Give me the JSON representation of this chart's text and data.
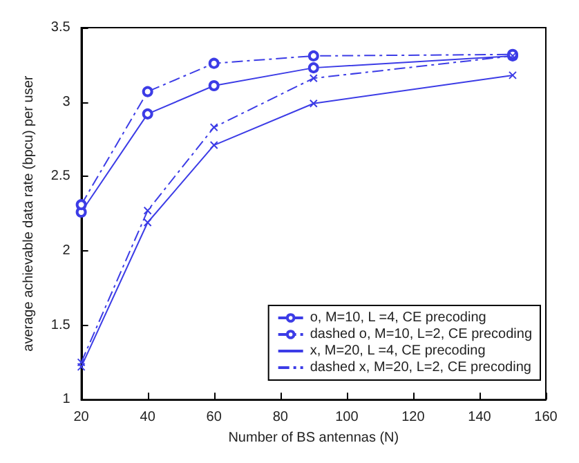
{
  "chart_data": {
    "type": "line",
    "xlabel": "Number of BS antennas (N)",
    "ylabel": "average achievable data rate (bpcu) per user",
    "x": [
      20,
      40,
      60,
      90,
      150
    ],
    "series": [
      {
        "name": "o, M=10, L =4, CE precoding",
        "color": "#3c3ce6",
        "marker": "circle",
        "line_style": "solid",
        "values": [
          2.26,
          2.92,
          3.11,
          3.23,
          3.31
        ]
      },
      {
        "name": "dashed o, M=10, L=2, CE precoding",
        "color": "#3c3ce6",
        "marker": "circle",
        "line_style": "dashed",
        "values": [
          2.31,
          3.07,
          3.26,
          3.31,
          3.32
        ]
      },
      {
        "name": "x, M=20, L =4, CE precoding",
        "color": "#3c3ce6",
        "marker": "cross",
        "line_style": "solid",
        "values": [
          1.22,
          2.19,
          2.71,
          2.99,
          3.18
        ]
      },
      {
        "name": "dashed x, M=20, L=2, CE precoding",
        "color": "#3c3ce6",
        "marker": "cross",
        "line_style": "dashed",
        "values": [
          1.25,
          2.27,
          2.83,
          3.16,
          3.31
        ]
      }
    ],
    "xlim": [
      20,
      160
    ],
    "xticks": [
      20,
      40,
      60,
      80,
      100,
      120,
      140,
      160
    ],
    "ylim": [
      1,
      3.5
    ],
    "yticks": [
      1,
      1.5,
      2,
      2.5,
      3,
      3.5
    ],
    "grid": false,
    "legend": "bottom right"
  }
}
